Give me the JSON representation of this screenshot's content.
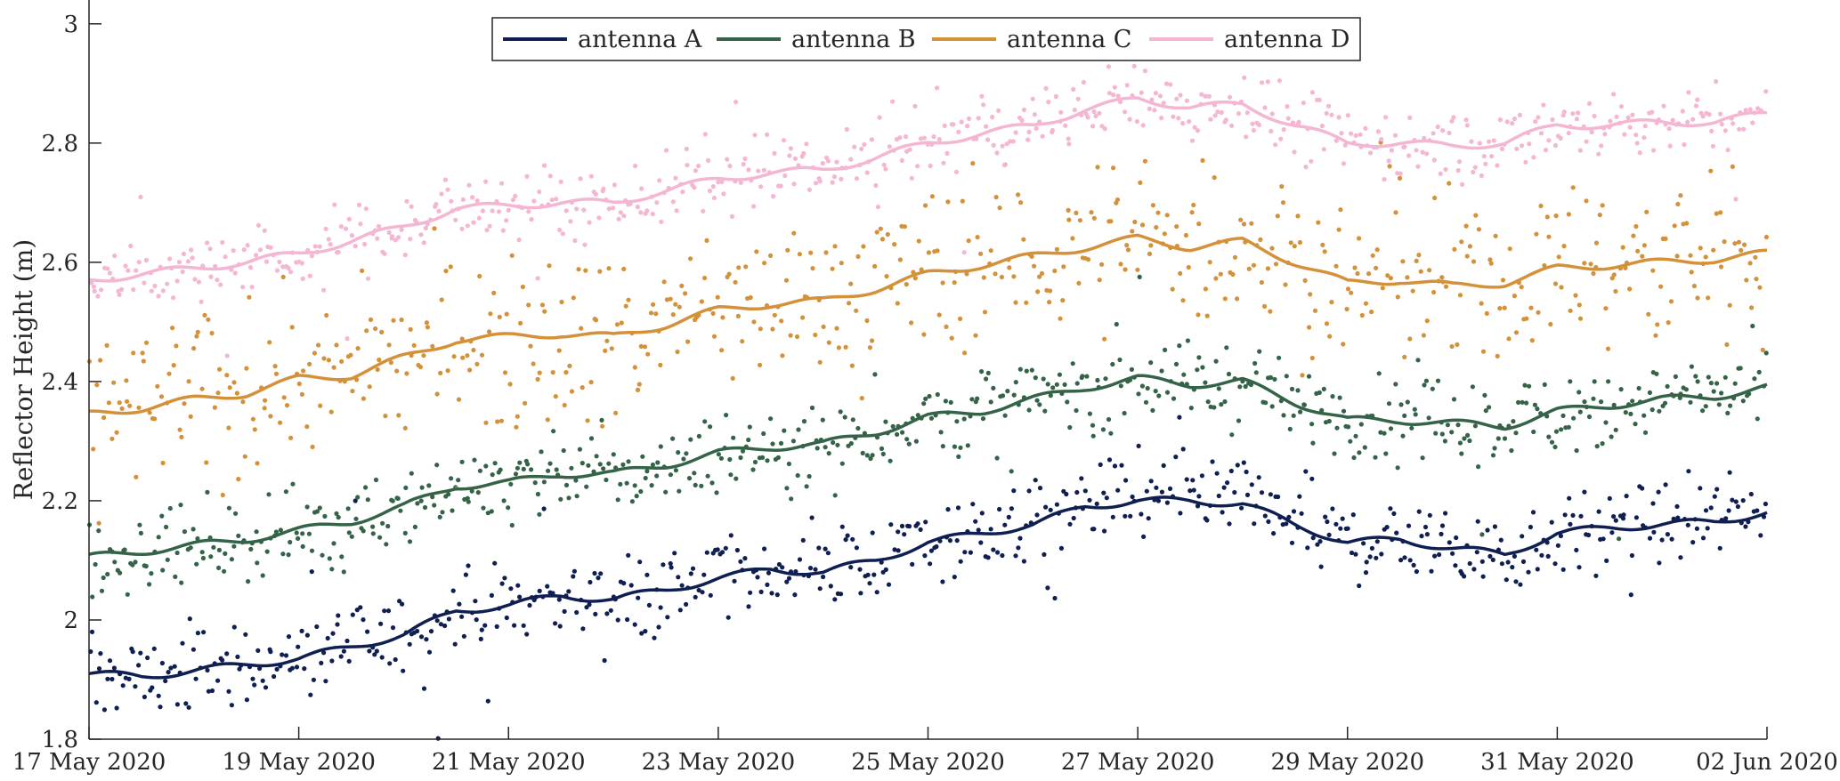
{
  "chart_data": {
    "type": "scatter",
    "title": "",
    "xlabel": "",
    "ylabel": "Reflector Height (m)",
    "x_range": [
      "2020-05-17",
      "2020-06-02"
    ],
    "ylim": [
      1.8,
      3.04
    ],
    "x_ticks": [
      {
        "date": "2020-05-17",
        "label": "17 May 2020"
      },
      {
        "date": "2020-05-19",
        "label": "19 May 2020"
      },
      {
        "date": "2020-05-21",
        "label": "21 May 2020"
      },
      {
        "date": "2020-05-23",
        "label": "23 May 2020"
      },
      {
        "date": "2020-05-25",
        "label": "25 May 2020"
      },
      {
        "date": "2020-05-27",
        "label": "27 May 2020"
      },
      {
        "date": "2020-05-29",
        "label": "29 May 2020"
      },
      {
        "date": "2020-05-31",
        "label": "31 May 2020"
      },
      {
        "date": "2020-06-02",
        "label": "02 Jun 2020"
      }
    ],
    "y_ticks": [
      {
        "value": 1.8,
        "label": "1.8"
      },
      {
        "value": 2.0,
        "label": "2"
      },
      {
        "value": 2.2,
        "label": "2.2"
      },
      {
        "value": 2.4,
        "label": "2.4"
      },
      {
        "value": 2.6,
        "label": "2.6"
      },
      {
        "value": 2.8,
        "label": "2.8"
      },
      {
        "value": 3.0,
        "label": "3"
      }
    ],
    "grid": false,
    "legend": "top-center",
    "series": [
      {
        "name": "antenna A",
        "color": "#0f1f52",
        "scatter_spread": 0.035,
        "trend": [
          {
            "x": "2020-05-17T00:00",
            "y": 1.91
          },
          {
            "x": "2020-05-17T12:00",
            "y": 1.905
          },
          {
            "x": "2020-05-18T00:00",
            "y": 1.915
          },
          {
            "x": "2020-05-18T12:00",
            "y": 1.925
          },
          {
            "x": "2020-05-19T00:00",
            "y": 1.935
          },
          {
            "x": "2020-05-19T12:00",
            "y": 1.955
          },
          {
            "x": "2020-05-20T00:00",
            "y": 1.975
          },
          {
            "x": "2020-05-20T12:00",
            "y": 2.015
          },
          {
            "x": "2020-05-21T00:00",
            "y": 2.025
          },
          {
            "x": "2020-05-21T12:00",
            "y": 2.04
          },
          {
            "x": "2020-05-22T00:00",
            "y": 2.035
          },
          {
            "x": "2020-05-22T12:00",
            "y": 2.05
          },
          {
            "x": "2020-05-23T00:00",
            "y": 2.07
          },
          {
            "x": "2020-05-23T12:00",
            "y": 2.085
          },
          {
            "x": "2020-05-24T00:00",
            "y": 2.08
          },
          {
            "x": "2020-05-24T12:00",
            "y": 2.1
          },
          {
            "x": "2020-05-25T00:00",
            "y": 2.13
          },
          {
            "x": "2020-05-25T12:00",
            "y": 2.145
          },
          {
            "x": "2020-05-26T00:00",
            "y": 2.16
          },
          {
            "x": "2020-05-26T12:00",
            "y": 2.19
          },
          {
            "x": "2020-05-27T00:00",
            "y": 2.2
          },
          {
            "x": "2020-05-27T12:00",
            "y": 2.2
          },
          {
            "x": "2020-05-28T00:00",
            "y": 2.195
          },
          {
            "x": "2020-05-28T12:00",
            "y": 2.16
          },
          {
            "x": "2020-05-29T00:00",
            "y": 2.13
          },
          {
            "x": "2020-05-29T12:00",
            "y": 2.135
          },
          {
            "x": "2020-05-30T00:00",
            "y": 2.12
          },
          {
            "x": "2020-05-30T12:00",
            "y": 2.11
          },
          {
            "x": "2020-05-31T00:00",
            "y": 2.145
          },
          {
            "x": "2020-05-31T12:00",
            "y": 2.155
          },
          {
            "x": "2020-06-01T00:00",
            "y": 2.16
          },
          {
            "x": "2020-06-01T12:00",
            "y": 2.165
          },
          {
            "x": "2020-06-02T00:00",
            "y": 2.18
          }
        ]
      },
      {
        "name": "antenna B",
        "color": "#356347",
        "scatter_spread": 0.035,
        "trend": [
          {
            "x": "2020-05-17T00:00",
            "y": 2.105
          },
          {
            "x": "2020-05-17T12:00",
            "y": 2.115
          },
          {
            "x": "2020-05-18T00:00",
            "y": 2.125
          },
          {
            "x": "2020-05-18T12:00",
            "y": 2.135
          },
          {
            "x": "2020-05-19T00:00",
            "y": 2.15
          },
          {
            "x": "2020-05-19T12:00",
            "y": 2.165
          },
          {
            "x": "2020-05-20T00:00",
            "y": 2.19
          },
          {
            "x": "2020-05-20T12:00",
            "y": 2.225
          },
          {
            "x": "2020-05-21T00:00",
            "y": 2.23
          },
          {
            "x": "2020-05-21T12:00",
            "y": 2.245
          },
          {
            "x": "2020-05-22T00:00",
            "y": 2.245
          },
          {
            "x": "2020-05-22T12:00",
            "y": 2.26
          },
          {
            "x": "2020-05-23T00:00",
            "y": 2.28
          },
          {
            "x": "2020-05-23T12:00",
            "y": 2.29
          },
          {
            "x": "2020-05-24T00:00",
            "y": 2.295
          },
          {
            "x": "2020-05-24T12:00",
            "y": 2.315
          },
          {
            "x": "2020-05-25T00:00",
            "y": 2.34
          },
          {
            "x": "2020-05-25T12:00",
            "y": 2.35
          },
          {
            "x": "2020-05-26T00:00",
            "y": 2.37
          },
          {
            "x": "2020-05-26T12:00",
            "y": 2.39
          },
          {
            "x": "2020-05-27T00:00",
            "y": 2.405
          },
          {
            "x": "2020-05-27T12:00",
            "y": 2.395
          },
          {
            "x": "2020-05-28T00:00",
            "y": 2.4
          },
          {
            "x": "2020-05-28T12:00",
            "y": 2.365
          },
          {
            "x": "2020-05-29T00:00",
            "y": 2.335
          },
          {
            "x": "2020-05-29T12:00",
            "y": 2.335
          },
          {
            "x": "2020-05-30T00:00",
            "y": 2.33
          },
          {
            "x": "2020-05-30T12:00",
            "y": 2.325
          },
          {
            "x": "2020-05-31T00:00",
            "y": 2.35
          },
          {
            "x": "2020-05-31T12:00",
            "y": 2.36
          },
          {
            "x": "2020-06-01T00:00",
            "y": 2.37
          },
          {
            "x": "2020-06-01T12:00",
            "y": 2.375
          },
          {
            "x": "2020-06-02T00:00",
            "y": 2.39
          }
        ]
      },
      {
        "name": "antenna C",
        "color": "#d4913a",
        "scatter_spread": 0.07,
        "trend": [
          {
            "x": "2020-05-17T00:00",
            "y": 2.345
          },
          {
            "x": "2020-05-17T12:00",
            "y": 2.355
          },
          {
            "x": "2020-05-18T00:00",
            "y": 2.37
          },
          {
            "x": "2020-05-18T12:00",
            "y": 2.38
          },
          {
            "x": "2020-05-19T00:00",
            "y": 2.405
          },
          {
            "x": "2020-05-19T12:00",
            "y": 2.41
          },
          {
            "x": "2020-05-20T00:00",
            "y": 2.44
          },
          {
            "x": "2020-05-20T12:00",
            "y": 2.47
          },
          {
            "x": "2020-05-21T00:00",
            "y": 2.475
          },
          {
            "x": "2020-05-21T12:00",
            "y": 2.48
          },
          {
            "x": "2020-05-22T00:00",
            "y": 2.475
          },
          {
            "x": "2020-05-22T12:00",
            "y": 2.495
          },
          {
            "x": "2020-05-23T00:00",
            "y": 2.52
          },
          {
            "x": "2020-05-23T12:00",
            "y": 2.53
          },
          {
            "x": "2020-05-24T00:00",
            "y": 2.535
          },
          {
            "x": "2020-05-24T12:00",
            "y": 2.555
          },
          {
            "x": "2020-05-25T00:00",
            "y": 2.58
          },
          {
            "x": "2020-05-25T12:00",
            "y": 2.595
          },
          {
            "x": "2020-05-26T00:00",
            "y": 2.61
          },
          {
            "x": "2020-05-26T12:00",
            "y": 2.625
          },
          {
            "x": "2020-05-27T00:00",
            "y": 2.64
          },
          {
            "x": "2020-05-27T12:00",
            "y": 2.625
          },
          {
            "x": "2020-05-28T00:00",
            "y": 2.635
          },
          {
            "x": "2020-05-28T12:00",
            "y": 2.6
          },
          {
            "x": "2020-05-29T00:00",
            "y": 2.565
          },
          {
            "x": "2020-05-29T12:00",
            "y": 2.57
          },
          {
            "x": "2020-05-30T00:00",
            "y": 2.56
          },
          {
            "x": "2020-05-30T12:00",
            "y": 2.565
          },
          {
            "x": "2020-05-31T00:00",
            "y": 2.59
          },
          {
            "x": "2020-05-31T12:00",
            "y": 2.595
          },
          {
            "x": "2020-06-01T00:00",
            "y": 2.6
          },
          {
            "x": "2020-06-01T12:00",
            "y": 2.605
          },
          {
            "x": "2020-06-02T00:00",
            "y": 2.615
          }
        ]
      },
      {
        "name": "antenna D",
        "color": "#f4b6d2",
        "scatter_spread": 0.03,
        "trend": [
          {
            "x": "2020-05-17T00:00",
            "y": 2.57
          },
          {
            "x": "2020-05-17T12:00",
            "y": 2.58
          },
          {
            "x": "2020-05-18T00:00",
            "y": 2.59
          },
          {
            "x": "2020-05-18T12:00",
            "y": 2.6
          },
          {
            "x": "2020-05-19T00:00",
            "y": 2.615
          },
          {
            "x": "2020-05-19T12:00",
            "y": 2.635
          },
          {
            "x": "2020-05-20T00:00",
            "y": 2.66
          },
          {
            "x": "2020-05-20T12:00",
            "y": 2.69
          },
          {
            "x": "2020-05-21T00:00",
            "y": 2.695
          },
          {
            "x": "2020-05-21T12:00",
            "y": 2.7
          },
          {
            "x": "2020-05-22T00:00",
            "y": 2.7
          },
          {
            "x": "2020-05-22T12:00",
            "y": 2.72
          },
          {
            "x": "2020-05-23T00:00",
            "y": 2.74
          },
          {
            "x": "2020-05-23T12:00",
            "y": 2.75
          },
          {
            "x": "2020-05-24T00:00",
            "y": 2.755
          },
          {
            "x": "2020-05-24T12:00",
            "y": 2.775
          },
          {
            "x": "2020-05-25T00:00",
            "y": 2.8
          },
          {
            "x": "2020-05-25T12:00",
            "y": 2.815
          },
          {
            "x": "2020-05-26T00:00",
            "y": 2.83
          },
          {
            "x": "2020-05-26T12:00",
            "y": 2.855
          },
          {
            "x": "2020-05-27T00:00",
            "y": 2.875
          },
          {
            "x": "2020-05-27T12:00",
            "y": 2.86
          },
          {
            "x": "2020-05-28T00:00",
            "y": 2.865
          },
          {
            "x": "2020-05-28T12:00",
            "y": 2.83
          },
          {
            "x": "2020-05-29T00:00",
            "y": 2.8
          },
          {
            "x": "2020-05-29T12:00",
            "y": 2.8
          },
          {
            "x": "2020-05-30T00:00",
            "y": 2.795
          },
          {
            "x": "2020-05-30T12:00",
            "y": 2.8
          },
          {
            "x": "2020-05-31T00:00",
            "y": 2.83
          },
          {
            "x": "2020-05-31T12:00",
            "y": 2.83
          },
          {
            "x": "2020-06-01T00:00",
            "y": 2.835
          },
          {
            "x": "2020-06-01T12:00",
            "y": 2.835
          },
          {
            "x": "2020-06-02T00:00",
            "y": 2.85
          }
        ]
      }
    ]
  }
}
